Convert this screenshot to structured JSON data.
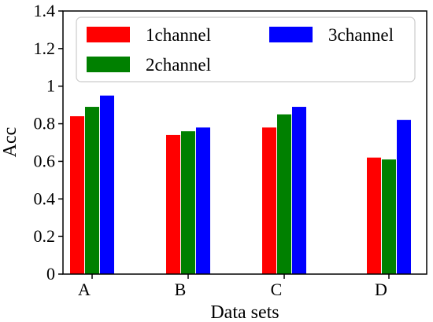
{
  "chart_data": {
    "type": "bar",
    "categories": [
      "A",
      "B",
      "C",
      "D"
    ],
    "series": [
      {
        "name": "1channel",
        "color": "#ff0000",
        "values": [
          0.84,
          0.74,
          0.78,
          0.62
        ]
      },
      {
        "name": "2channel",
        "color": "#008000",
        "values": [
          0.89,
          0.76,
          0.85,
          0.61
        ]
      },
      {
        "name": "3channel",
        "color": "#0000ff",
        "values": [
          0.95,
          0.78,
          0.89,
          0.82
        ]
      }
    ],
    "xlabel": "Data sets",
    "ylabel": "Acc",
    "ylim": [
      0,
      1.4
    ],
    "yticks": [
      {
        "value": 0,
        "label": "0"
      },
      {
        "value": 0.2,
        "label": "0.2"
      },
      {
        "value": 0.4,
        "label": "0.4"
      },
      {
        "value": 0.6,
        "label": "0.6"
      },
      {
        "value": 0.8,
        "label": "0.8"
      },
      {
        "value": 1.0,
        "label": "1"
      },
      {
        "value": 1.2,
        "label": "1.2"
      },
      {
        "value": 1.4,
        "label": "1.4"
      }
    ],
    "grid": false,
    "legend": {
      "placement": "top",
      "columns": 2
    }
  }
}
